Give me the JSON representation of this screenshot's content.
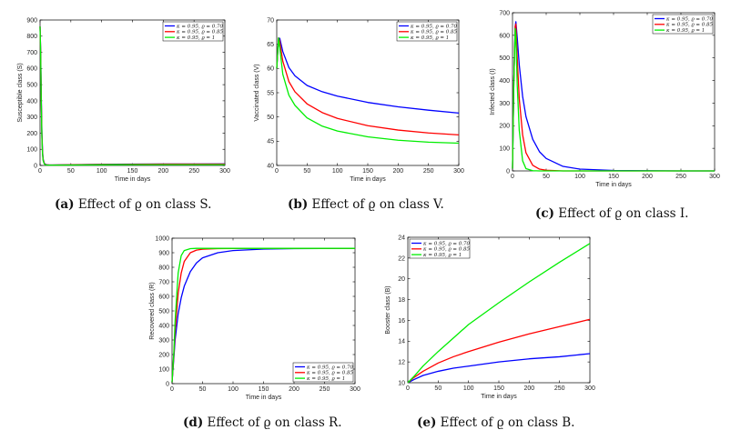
{
  "colors": {
    "series0": "#0000ff",
    "series1": "#ff0000",
    "series2": "#00ee00"
  },
  "captions": [
    {
      "tag": "(a)",
      "text": "Effect of ϱ on class S."
    },
    {
      "tag": "(b)",
      "text": "Effect of ϱ on class V."
    },
    {
      "tag": "(c)",
      "text": "Effect of ϱ on class I."
    },
    {
      "tag": "(d)",
      "text": "Effect of ϱ on class R."
    },
    {
      "tag": "(e)",
      "text": "Effect of ϱ on class B."
    }
  ],
  "chart_data": [
    {
      "id": "a",
      "type": "line",
      "title": "",
      "xlabel": "Time in days",
      "ylabel": "Susceptible class (S)",
      "xlim": [
        0,
        300
      ],
      "ylim": [
        0,
        900
      ],
      "xticks": [
        0,
        50,
        100,
        150,
        200,
        250,
        300
      ],
      "yticks": [
        0,
        100,
        200,
        300,
        400,
        500,
        600,
        700,
        800,
        900
      ],
      "legend_position": "top-right",
      "series": [
        {
          "name": "κ = 0.95, ϱ = 0.70",
          "x": [
            0,
            1,
            2,
            3,
            4,
            5,
            7,
            10,
            15,
            20,
            50,
            100,
            150,
            200,
            250,
            300
          ],
          "y": [
            860,
            700,
            420,
            200,
            90,
            40,
            12,
            5,
            3,
            3,
            5,
            7,
            8,
            9,
            9,
            10
          ]
        },
        {
          "name": "κ = 0.95, ϱ = 0.85",
          "x": [
            0,
            1,
            2,
            3,
            4,
            5,
            7,
            10,
            15,
            20,
            50,
            100,
            150,
            200,
            250,
            300
          ],
          "y": [
            860,
            690,
            400,
            185,
            80,
            35,
            10,
            4,
            3,
            3,
            4,
            6,
            7,
            8,
            8,
            8
          ]
        },
        {
          "name": "κ = 0.95, ϱ = 1",
          "x": [
            0,
            1,
            2,
            3,
            4,
            5,
            7,
            10,
            15,
            20,
            50,
            100,
            150,
            200,
            250,
            300
          ],
          "y": [
            860,
            680,
            380,
            170,
            70,
            30,
            8,
            3,
            2,
            2,
            3,
            4,
            5,
            5,
            5,
            5
          ]
        }
      ]
    },
    {
      "id": "b",
      "type": "line",
      "title": "",
      "xlabel": "Time in days",
      "ylabel": "Vaccinated class (V)",
      "xlim": [
        0,
        300
      ],
      "ylim": [
        40,
        70
      ],
      "xticks": [
        0,
        50,
        100,
        150,
        200,
        250,
        300
      ],
      "yticks": [
        40,
        45,
        50,
        55,
        60,
        65,
        70
      ],
      "legend_position": "top-right",
      "series": [
        {
          "name": "κ = 0.95, ϱ = 0.70",
          "x": [
            0,
            3,
            5,
            10,
            20,
            30,
            50,
            75,
            100,
            150,
            200,
            250,
            300
          ],
          "y": [
            60,
            66.3,
            66.2,
            63.5,
            60.2,
            58.5,
            56.5,
            55.2,
            54.3,
            53.0,
            52.1,
            51.4,
            50.8
          ]
        },
        {
          "name": "κ = 0.95, ϱ = 0.85",
          "x": [
            0,
            3,
            5,
            10,
            20,
            30,
            50,
            75,
            100,
            150,
            200,
            250,
            300
          ],
          "y": [
            60,
            66.3,
            65.5,
            61.5,
            57.3,
            55.2,
            52.7,
            50.9,
            49.7,
            48.2,
            47.3,
            46.7,
            46.3
          ]
        },
        {
          "name": "κ = 0.95, ϱ = 1",
          "x": [
            0,
            3,
            5,
            10,
            20,
            30,
            50,
            75,
            100,
            150,
            200,
            250,
            300
          ],
          "y": [
            60,
            66.3,
            64.3,
            58.8,
            54.5,
            52.4,
            49.8,
            48.1,
            47.1,
            45.9,
            45.2,
            44.8,
            44.6
          ]
        }
      ]
    },
    {
      "id": "c",
      "type": "line",
      "title": "",
      "xlabel": "Time in days",
      "ylabel": "Infected class (I)",
      "xlim": [
        0,
        300
      ],
      "ylim": [
        0,
        700
      ],
      "xticks": [
        0,
        50,
        100,
        150,
        200,
        250,
        300
      ],
      "yticks": [
        0,
        100,
        200,
        300,
        400,
        500,
        600,
        700
      ],
      "legend_position": "top-right",
      "series": [
        {
          "name": "κ = 0.95, ϱ = 0.70",
          "x": [
            0,
            2,
            4,
            5,
            7,
            10,
            15,
            20,
            30,
            40,
            50,
            75,
            100,
            150,
            200,
            250,
            300
          ],
          "y": [
            10,
            400,
            640,
            660,
            590,
            470,
            330,
            240,
            140,
            85,
            55,
            20,
            8,
            2,
            1,
            0,
            0
          ]
        },
        {
          "name": "κ = 0.95, ϱ = 0.85",
          "x": [
            0,
            2,
            4,
            5,
            7,
            10,
            15,
            20,
            30,
            40,
            50,
            75,
            100,
            150,
            200,
            250,
            300
          ],
          "y": [
            10,
            400,
            640,
            650,
            500,
            320,
            160,
            80,
            25,
            8,
            3,
            0,
            0,
            0,
            0,
            0,
            0
          ]
        },
        {
          "name": "κ = 0.95, ϱ = 1",
          "x": [
            0,
            2,
            4,
            5,
            7,
            10,
            15,
            20,
            30,
            40,
            50,
            75,
            100,
            150,
            200,
            250,
            300
          ],
          "y": [
            10,
            400,
            630,
            600,
            380,
            180,
            45,
            10,
            1,
            0,
            0,
            0,
            0,
            0,
            0,
            0,
            0
          ]
        }
      ]
    },
    {
      "id": "d",
      "type": "line",
      "title": "",
      "xlabel": "Time in days",
      "ylabel": "Recovered class (R)",
      "xlim": [
        0,
        300
      ],
      "ylim": [
        0,
        1000
      ],
      "xticks": [
        0,
        50,
        100,
        150,
        200,
        250,
        300
      ],
      "yticks": [
        0,
        100,
        200,
        300,
        400,
        500,
        600,
        700,
        800,
        900,
        1000
      ],
      "legend_position": "bottom-right",
      "series": [
        {
          "name": "κ = 0.95, ϱ = 0.70",
          "x": [
            0,
            3,
            5,
            10,
            15,
            20,
            30,
            40,
            50,
            75,
            100,
            150,
            200,
            300
          ],
          "y": [
            10,
            180,
            300,
            480,
            590,
            670,
            770,
            830,
            865,
            900,
            915,
            925,
            928,
            930
          ]
        },
        {
          "name": "κ = 0.95, ϱ = 0.85",
          "x": [
            0,
            3,
            5,
            10,
            15,
            20,
            30,
            40,
            50,
            75,
            100,
            150,
            200,
            300
          ],
          "y": [
            10,
            200,
            360,
            620,
            760,
            840,
            900,
            918,
            924,
            928,
            929,
            930,
            930,
            930
          ]
        },
        {
          "name": "κ = 0.95, ϱ = 1",
          "x": [
            0,
            3,
            5,
            10,
            15,
            20,
            30,
            40,
            50,
            75,
            100,
            150,
            200,
            300
          ],
          "y": [
            10,
            220,
            430,
            760,
            880,
            915,
            928,
            930,
            930,
            930,
            930,
            930,
            930,
            930
          ]
        }
      ]
    },
    {
      "id": "e",
      "type": "line",
      "title": "",
      "xlabel": "Time in days",
      "ylabel": "Booster class (B)",
      "xlim": [
        0,
        300
      ],
      "ylim": [
        10,
        24
      ],
      "xticks": [
        0,
        50,
        100,
        150,
        200,
        250,
        300
      ],
      "yticks": [
        10,
        12,
        14,
        16,
        18,
        20,
        22,
        24
      ],
      "legend_position": "top-left",
      "series": [
        {
          "name": "κ = 0.95, ϱ = 0.70",
          "x": [
            0,
            10,
            25,
            50,
            75,
            100,
            150,
            200,
            250,
            300
          ],
          "y": [
            10.0,
            10.3,
            10.7,
            11.1,
            11.4,
            11.6,
            12.0,
            12.3,
            12.5,
            12.8
          ]
        },
        {
          "name": "κ = 0.95, ϱ = 0.85",
          "x": [
            0,
            10,
            25,
            50,
            75,
            100,
            150,
            200,
            250,
            300
          ],
          "y": [
            10.0,
            10.5,
            11.1,
            11.9,
            12.5,
            13.0,
            13.9,
            14.7,
            15.4,
            16.1
          ]
        },
        {
          "name": "κ = 0.95, ϱ = 1",
          "x": [
            0,
            10,
            25,
            50,
            75,
            100,
            150,
            200,
            250,
            300
          ],
          "y": [
            10.0,
            10.6,
            11.6,
            13.0,
            14.3,
            15.6,
            17.7,
            19.7,
            21.6,
            23.4
          ]
        }
      ]
    }
  ]
}
